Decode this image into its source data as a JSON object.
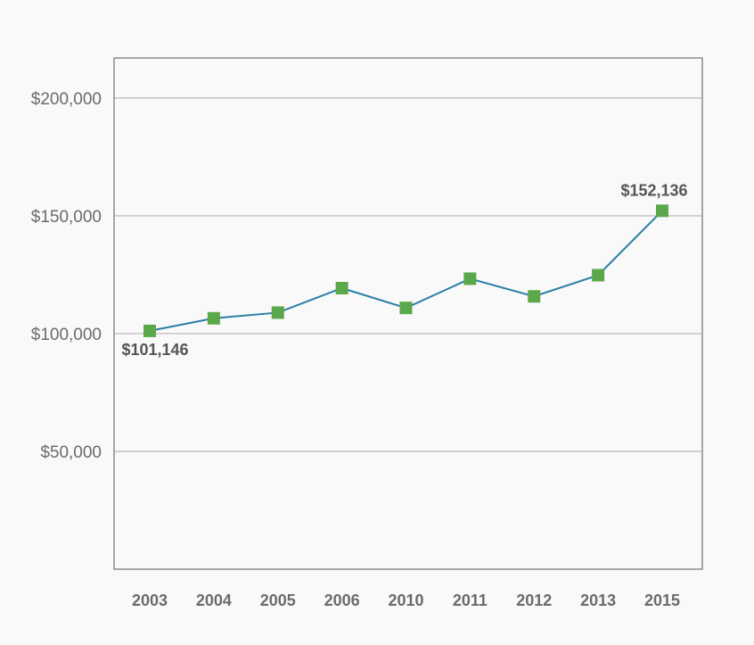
{
  "chart_data": {
    "type": "line",
    "title": "",
    "xlabel": "",
    "ylabel": "",
    "categories": [
      "2003",
      "2004",
      "2005",
      "2006",
      "2010",
      "2011",
      "2012",
      "2013",
      "2015"
    ],
    "series": [
      {
        "values": [
          101146,
          106500,
          108900,
          119300,
          110900,
          123300,
          115800,
          124800,
          152136
        ]
      }
    ],
    "ylim": [
      0,
      217000
    ],
    "yticks": [
      {
        "value": 50000,
        "label": "$50,000"
      },
      {
        "value": 100000,
        "label": "$100,000"
      },
      {
        "value": 150000,
        "label": "$150,000"
      },
      {
        "value": 200000,
        "label": "$200,000"
      }
    ],
    "data_labels": [
      {
        "index": 0,
        "text": "$101,146",
        "position": "below"
      },
      {
        "index": 8,
        "text": "$152,136",
        "position": "above"
      }
    ],
    "grid": true,
    "legend": "none",
    "colors": {
      "line": "#2a7fa6",
      "marker": "#5ba84a",
      "grid": "#b5b5b5",
      "axis": "#8c8c8c",
      "background": "#f9f9f9"
    }
  }
}
